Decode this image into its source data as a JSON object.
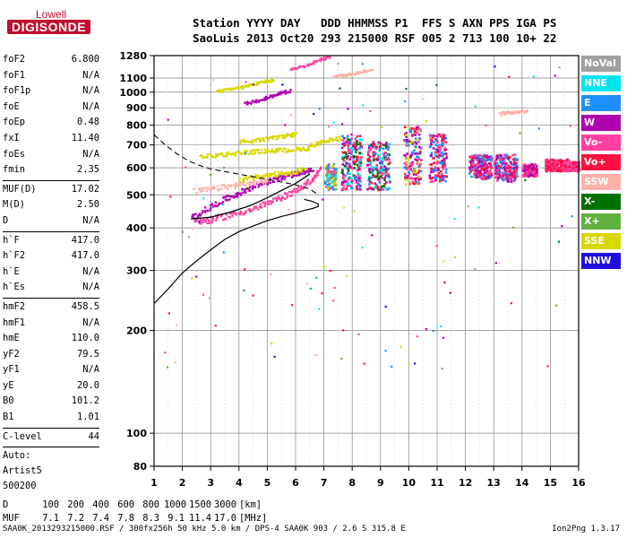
{
  "logo": {
    "top": "Lowell",
    "bottom": "DIGISONDE"
  },
  "header": {
    "row1": "Station YYYY DAY   DDD HHMMSS P1  FFS S AXN PPS IGA PS",
    "row2": "SaoLuis 2013 Oct20 293 215000 RSF 005 2 713 100 10+ 22"
  },
  "params": {
    "g1": [
      [
        "foF2",
        "6.800"
      ],
      [
        "foF1",
        "N/A"
      ],
      [
        "foF1p",
        "N/A"
      ],
      [
        "foE",
        "N/A"
      ],
      [
        "foEp",
        "0.48"
      ],
      [
        "fxI",
        "11.40"
      ],
      [
        "foEs",
        "N/A"
      ],
      [
        "fmin",
        "2.35"
      ]
    ],
    "g2": [
      [
        "MUF(D)",
        "17.02"
      ],
      [
        "M(D)",
        "2.50"
      ],
      [
        "D",
        "N/A"
      ]
    ],
    "g3": [
      [
        "h`F",
        "417.0"
      ],
      [
        "h`F2",
        "417.0"
      ],
      [
        "h`E",
        "N/A"
      ],
      [
        "h`Es",
        "N/A"
      ]
    ],
    "g4": [
      [
        "hmF2",
        "458.5"
      ],
      [
        "hmF1",
        "N/A"
      ],
      [
        "hmE",
        "110.0"
      ],
      [
        "yF2",
        "79.5"
      ],
      [
        "yF1",
        "N/A"
      ],
      [
        "yE",
        "20.0"
      ],
      [
        "B0",
        "101.2"
      ],
      [
        "B1",
        "1.01"
      ]
    ],
    "g5": [
      [
        "C-level",
        "44"
      ]
    ],
    "auto": [
      "Auto:",
      "Artist5",
      "500200"
    ]
  },
  "legend": [
    {
      "label": "NoVal",
      "color": "#a0a0a0"
    },
    {
      "label": "NNE",
      "color": "#00e5f0"
    },
    {
      "label": "E",
      "color": "#1e90ff"
    },
    {
      "label": "W",
      "color": "#b000b0"
    },
    {
      "label": "Vo-",
      "color": "#ff40a0"
    },
    {
      "label": "Vo+",
      "color": "#ff1040"
    },
    {
      "label": "SSW",
      "color": "#ffb0a8"
    },
    {
      "label": "X-",
      "color": "#007000"
    },
    {
      "label": "X+",
      "color": "#60b040"
    },
    {
      "label": "SSE",
      "color": "#d8d800"
    },
    {
      "label": "NNW",
      "color": "#2010e0"
    }
  ],
  "chart_data": {
    "type": "scatter",
    "x_axis": {
      "range": [
        1,
        16
      ],
      "ticks": [
        "1",
        "2",
        "3",
        "4",
        "5",
        "6",
        "7",
        "8",
        "9",
        "10",
        "11",
        "12",
        "13",
        "14",
        "15",
        "16"
      ]
    },
    "y_axis": {
      "scale": "log",
      "range": [
        80,
        1280
      ],
      "ticks": [
        "80",
        "100",
        "200",
        "300",
        "400",
        "500",
        "600",
        "700",
        "800",
        "900",
        "1000",
        "1100",
        "1280"
      ]
    },
    "grid": true,
    "trace_series": [
      {
        "color": "#ff40a0",
        "points": [
          [
            2.4,
            420
          ],
          [
            3.0,
            425
          ],
          [
            3.7,
            440
          ],
          [
            4.4,
            455
          ],
          [
            5.0,
            475
          ],
          [
            5.6,
            500
          ],
          [
            6.1,
            525
          ],
          [
            6.6,
            560
          ],
          [
            6.85,
            600
          ]
        ]
      },
      {
        "color": "#b000b0",
        "points": [
          [
            2.3,
            430
          ],
          [
            2.9,
            460
          ],
          [
            3.5,
            490
          ],
          [
            4.1,
            515
          ],
          [
            4.7,
            540
          ],
          [
            5.3,
            560
          ],
          [
            5.8,
            575
          ],
          [
            6.2,
            585
          ],
          [
            6.6,
            600
          ]
        ]
      },
      {
        "color": "#d8d800",
        "points": [
          [
            4.0,
            555
          ],
          [
            4.6,
            568
          ],
          [
            5.2,
            578
          ],
          [
            5.8,
            585
          ],
          [
            6.4,
            600
          ]
        ]
      },
      {
        "color": "#ffb0a8",
        "points": [
          [
            2.4,
            515
          ],
          [
            3.1,
            525
          ],
          [
            3.8,
            535
          ],
          [
            4.4,
            545
          ],
          [
            5.0,
            555
          ]
        ]
      },
      {
        "color": "#d8d800",
        "points": [
          [
            2.6,
            650
          ],
          [
            3.3,
            660
          ],
          [
            4.0,
            668
          ],
          [
            4.6,
            674
          ],
          [
            5.2,
            678
          ],
          [
            5.8,
            682
          ],
          [
            6.5,
            690
          ]
        ]
      },
      {
        "color": "#d8d800",
        "points": [
          [
            4.0,
            720
          ],
          [
            4.8,
            730
          ],
          [
            5.5,
            745
          ],
          [
            6.0,
            760
          ]
        ]
      },
      {
        "color": "#d8d800",
        "points": [
          [
            6.5,
            700
          ],
          [
            7.0,
            720
          ],
          [
            7.6,
            740
          ]
        ]
      },
      {
        "color": "#b000b0",
        "points": [
          [
            4.2,
            930
          ],
          [
            4.8,
            960
          ],
          [
            5.3,
            990
          ],
          [
            5.8,
            1020
          ]
        ]
      },
      {
        "color": "#d8d800",
        "points": [
          [
            3.2,
            1010
          ],
          [
            3.8,
            1030
          ],
          [
            4.3,
            1050
          ],
          [
            4.8,
            1080
          ],
          [
            5.2,
            1090
          ]
        ]
      },
      {
        "color": "#ffb0a8",
        "points": [
          [
            7.3,
            1120
          ],
          [
            7.8,
            1130
          ],
          [
            8.2,
            1150
          ],
          [
            8.7,
            1170
          ]
        ]
      },
      {
        "color": "#ff40a0",
        "points": [
          [
            5.8,
            1180
          ],
          [
            6.3,
            1200
          ],
          [
            6.8,
            1250
          ],
          [
            7.2,
            1280
          ]
        ]
      },
      {
        "color": "#ffb0a8",
        "points": [
          [
            13.2,
            870
          ],
          [
            13.7,
            880
          ],
          [
            14.2,
            890
          ]
        ]
      }
    ],
    "blob_series": [
      {
        "x": [
          7.0,
          7.4
        ],
        "y": [
          520,
          620
        ],
        "colors": [
          "#d8d800",
          "#ff40a0",
          "#60b040",
          "#1e90ff",
          "#00e5f0"
        ]
      },
      {
        "x": [
          7.6,
          8.3
        ],
        "y": [
          520,
          760
        ],
        "colors": [
          "#ff40a0",
          "#b000b0",
          "#007000",
          "#1e90ff",
          "#00e5f0",
          "#ff1040"
        ]
      },
      {
        "x": [
          8.5,
          9.3
        ],
        "y": [
          520,
          720
        ],
        "colors": [
          "#ff40a0",
          "#b000b0",
          "#1e90ff",
          "#00e5f0",
          "#ff1040",
          "#007000"
        ]
      },
      {
        "x": [
          9.8,
          10.4
        ],
        "y": [
          540,
          800
        ],
        "colors": [
          "#ff40a0",
          "#b000b0",
          "#1e90ff",
          "#ff1040",
          "#d8d800"
        ]
      },
      {
        "x": [
          10.7,
          11.3
        ],
        "y": [
          550,
          760
        ],
        "colors": [
          "#ff40a0",
          "#b000b0",
          "#ff1040",
          "#1e90ff"
        ]
      },
      {
        "x": [
          12.1,
          12.9
        ],
        "y": [
          560,
          660
        ],
        "colors": [
          "#ff40a0",
          "#b000b0",
          "#1e90ff",
          "#ff1040"
        ]
      },
      {
        "x": [
          13.0,
          13.8
        ],
        "y": [
          550,
          660
        ],
        "colors": [
          "#ff40a0",
          "#b000b0",
          "#ff1040",
          "#1e90ff"
        ]
      },
      {
        "x": [
          14.0,
          14.5
        ],
        "y": [
          570,
          620
        ],
        "colors": [
          "#ff40a0",
          "#ff1040",
          "#b000b0"
        ]
      },
      {
        "x": [
          14.8,
          15.6
        ],
        "y": [
          590,
          640
        ],
        "colors": [
          "#ff1040",
          "#ff40a0"
        ]
      },
      {
        "x": [
          15.6,
          16.0
        ],
        "y": [
          590,
          630
        ],
        "colors": [
          "#ff1040",
          "#ff40a0"
        ]
      }
    ],
    "solid_profile": [
      [
        1.0,
        240
      ],
      [
        1.5,
        265
      ],
      [
        2.0,
        295
      ],
      [
        2.5,
        320
      ],
      [
        3.0,
        345
      ],
      [
        3.5,
        370
      ],
      [
        4.0,
        390
      ],
      [
        4.5,
        405
      ],
      [
        5.0,
        420
      ],
      [
        5.5,
        432
      ],
      [
        6.0,
        442
      ],
      [
        6.3,
        450
      ],
      [
        6.6,
        456
      ],
      [
        6.8,
        462
      ],
      [
        6.8,
        470
      ],
      [
        6.6,
        478
      ],
      [
        6.3,
        485
      ]
    ],
    "dashed_profile": [
      [
        1.0,
        750
      ],
      [
        1.4,
        700
      ],
      [
        1.8,
        660
      ],
      [
        2.2,
        630
      ],
      [
        2.6,
        610
      ],
      [
        3.0,
        595
      ],
      [
        3.5,
        585
      ],
      [
        4.0,
        575
      ],
      [
        4.5,
        565
      ],
      [
        5.0,
        555
      ],
      [
        5.5,
        545
      ],
      [
        6.0,
        535
      ],
      [
        6.5,
        520
      ],
      [
        6.8,
        500
      ]
    ],
    "curve_series": [
      [
        2.3,
        425
      ],
      [
        3.0,
        430
      ],
      [
        3.7,
        445
      ],
      [
        4.4,
        465
      ],
      [
        5.0,
        490
      ],
      [
        5.5,
        515
      ],
      [
        6.0,
        540
      ],
      [
        6.5,
        575
      ]
    ]
  },
  "dmuf": {
    "d_label": "D",
    "d_values": [
      "100",
      "200",
      "400",
      "600",
      "800",
      "1000",
      "1500",
      "3000"
    ],
    "d_unit": "[km]",
    "m_label": "MUF",
    "m_values": [
      "7.1",
      "7.2",
      "7.4",
      "7.8",
      "8.3",
      "9.1",
      "11.4",
      "17.0"
    ],
    "m_unit": "[MHz]"
  },
  "footer": "SAA0K_2013293215000.RSF / 300fx256h 50 kHz 5.0 km / DPS-4 SAA0K 903 / 2.6 S 315.8 E",
  "version": "Ion2Png 1.3.17"
}
